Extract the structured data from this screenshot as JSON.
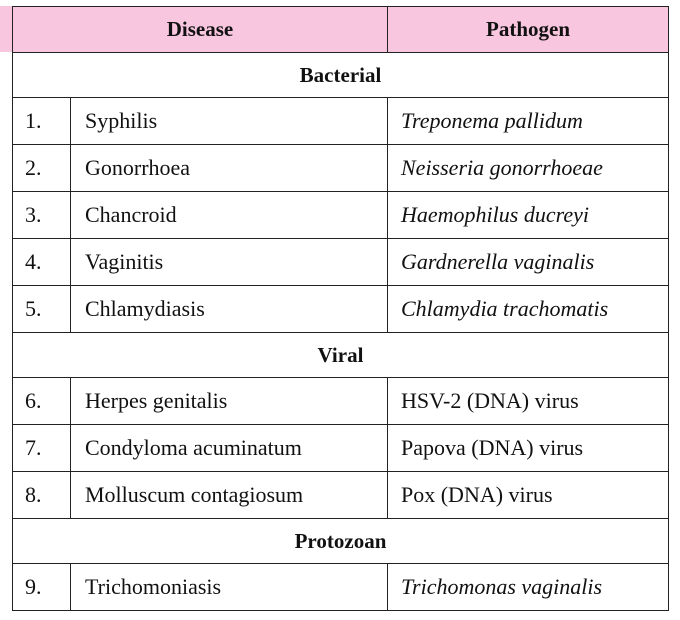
{
  "table": {
    "headers": {
      "disease": "Disease",
      "pathogen": "Pathogen"
    },
    "sections": [
      {
        "title": "Bacterial",
        "rows": [
          {
            "num": "1.",
            "disease": "Syphilis",
            "pathogen": "Treponema pallidum",
            "italic": true
          },
          {
            "num": "2.",
            "disease": "Gonorrhoea",
            "pathogen": "Neisseria gonorrhoeae",
            "italic": true
          },
          {
            "num": "3.",
            "disease": "Chancroid",
            "pathogen": "Haemophilus ducreyi",
            "italic": true
          },
          {
            "num": "4.",
            "disease": "Vaginitis",
            "pathogen": "Gardnerella vaginalis",
            "italic": true
          },
          {
            "num": "5.",
            "disease": "Chlamydiasis",
            "pathogen": "Chlamydia trachomatis",
            "italic": true
          }
        ]
      },
      {
        "title": "Viral",
        "rows": [
          {
            "num": "6.",
            "disease": "Herpes genitalis",
            "pathogen": "HSV-2 (DNA) virus",
            "italic": false
          },
          {
            "num": "7.",
            "disease": "Condyloma acuminatum",
            "pathogen": "Papova (DNA) virus",
            "italic": false
          },
          {
            "num": "8.",
            "disease": "Molluscum contagiosum",
            "pathogen": "Pox (DNA) virus",
            "italic": false
          }
        ]
      },
      {
        "title": "Protozoan",
        "rows": [
          {
            "num": "9.",
            "disease": "Trichomoniasis",
            "pathogen": "Trichomonas vaginalis",
            "italic": true
          }
        ]
      }
    ]
  },
  "colors": {
    "header_background": "#f9c6df",
    "border": "#222222"
  }
}
